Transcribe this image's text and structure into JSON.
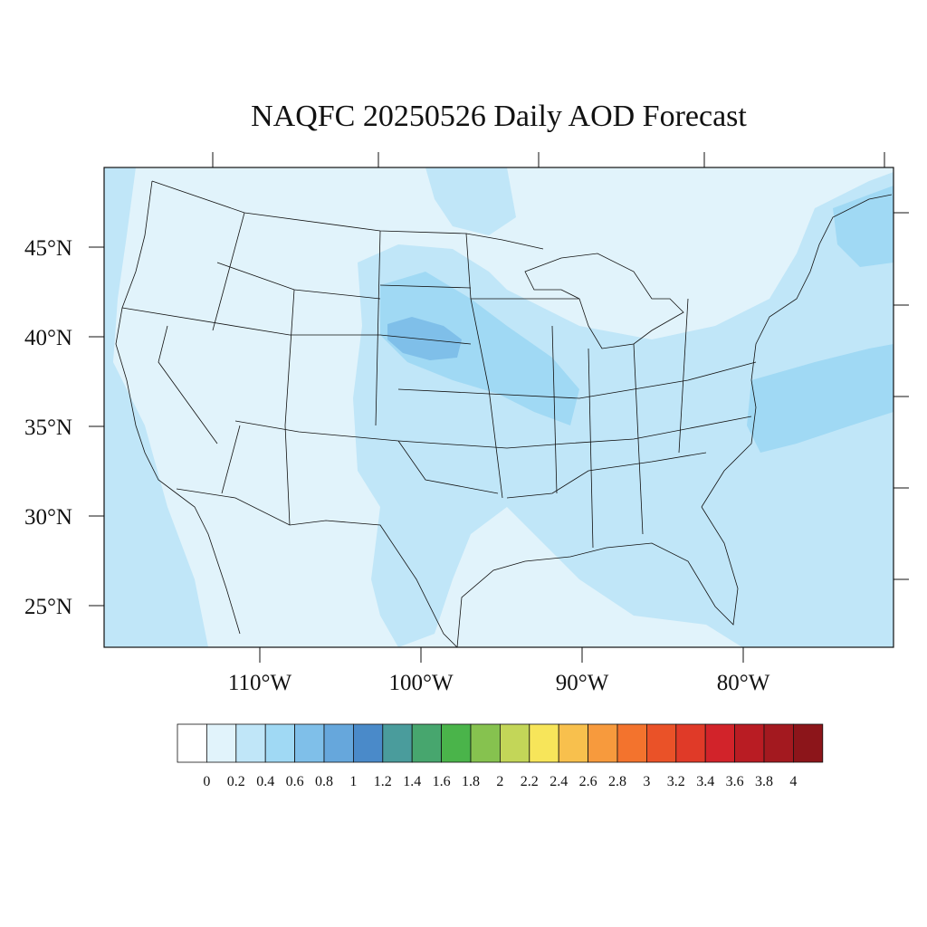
{
  "title": "NAQFC 20250526 Daily AOD Forecast",
  "lat_labels": [
    "45°N",
    "40°N",
    "35°N",
    "30°N",
    "25°N"
  ],
  "lon_labels": [
    "110°W",
    "100°W",
    "90°W",
    "80°W"
  ],
  "colorbar": {
    "ticks": [
      "0",
      "0.2",
      "0.4",
      "0.6",
      "0.8",
      "1",
      "1.2",
      "1.4",
      "1.6",
      "1.8",
      "2",
      "2.2",
      "2.4",
      "2.6",
      "2.8",
      "3",
      "3.2",
      "3.4",
      "3.6",
      "3.8",
      "4"
    ],
    "colors": [
      "#ffffff",
      "#e1f3fb",
      "#c0e6f8",
      "#a0d9f4",
      "#7fbfe9",
      "#66a7dc",
      "#4a8ac9",
      "#4a9c9c",
      "#47a66e",
      "#4ab44a",
      "#86c24f",
      "#c3d658",
      "#f7e55a",
      "#f8c04d",
      "#f79a3d",
      "#f3732d",
      "#ea5228",
      "#e03a28",
      "#d2232a",
      "#b91c23",
      "#a3191f",
      "#8c151a"
    ]
  },
  "map_colors": {
    "base": "#e1f3fb",
    "level_04": "#c0e6f8",
    "level_06": "#a0d9f4",
    "level_08": "#7fbfe9"
  }
}
